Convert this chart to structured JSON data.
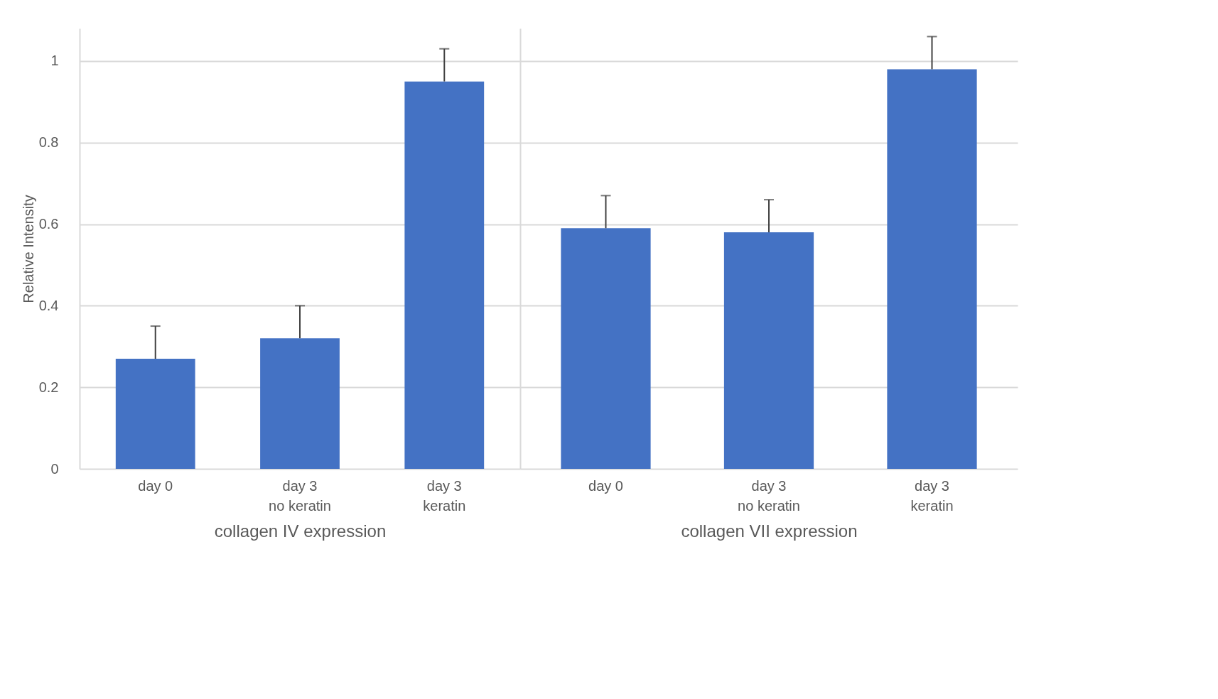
{
  "chart_data": [
    {
      "type": "bar",
      "ylabel": "Relative Intensity",
      "xlabel": "collagen IV expression",
      "categories": [
        "day 0",
        "day 3\nno keratin",
        "day 3\nkeratin"
      ],
      "values": [
        0.27,
        0.32,
        0.95
      ],
      "errors": [
        [
          0.27,
          0.35
        ],
        [
          0.32,
          0.4
        ],
        [
          0.95,
          1.03
        ]
      ],
      "color": "#4472c4",
      "ylim": [
        0,
        1.08
      ],
      "yticks": [
        0,
        0.2,
        0.4,
        0.6,
        0.8,
        1
      ],
      "grid": "y"
    },
    {
      "type": "bar",
      "xlabel": "collagen VII expression",
      "categories": [
        "day 0",
        "day 3\nno keratin",
        "day 3\nkeratin"
      ],
      "values": [
        0.59,
        0.58,
        0.98
      ],
      "errors": [
        [
          0.59,
          0.67
        ],
        [
          0.58,
          0.66
        ],
        [
          0.98,
          1.06
        ]
      ],
      "color": "#4472c4",
      "ylim": [
        0,
        1.08
      ],
      "yticks": [
        0,
        0.2,
        0.4,
        0.6,
        0.8,
        1
      ],
      "grid": "y",
      "tick_labels": "x"
    }
  ]
}
